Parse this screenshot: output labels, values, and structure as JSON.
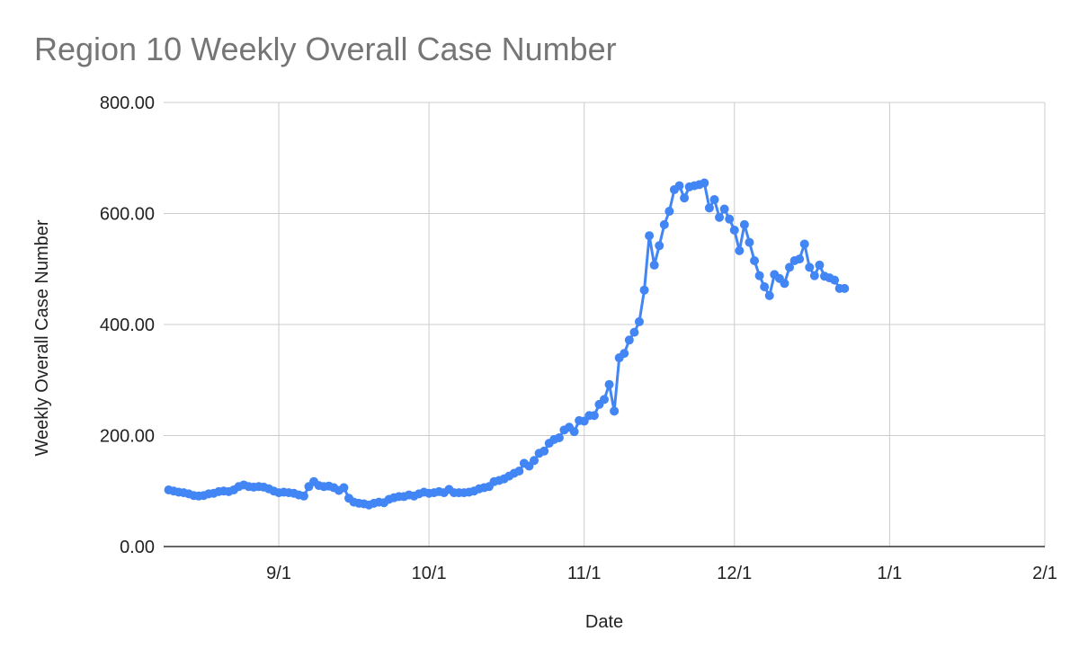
{
  "chart_data": {
    "type": "line",
    "title": "Region 10 Weekly Overall Case Number",
    "xlabel": "Date",
    "ylabel": "Weekly Overall Case Number",
    "ylim": [
      0,
      800
    ],
    "xlim": [
      "2020-08-09",
      "2021-02-01"
    ],
    "y_ticks": [
      0,
      200,
      400,
      600,
      800
    ],
    "y_tick_labels": [
      "0.00",
      "200.00",
      "400.00",
      "600.00",
      "800.00"
    ],
    "x_ticks": [
      "2020-09-01",
      "2020-10-01",
      "2020-11-01",
      "2020-12-01",
      "2021-01-01",
      "2021-02-01"
    ],
    "x_tick_labels": [
      "9/1",
      "10/1",
      "11/1",
      "12/1",
      "1/1",
      "2/1"
    ],
    "grid": true,
    "legend": "none",
    "colors": {
      "series": "#4285f4",
      "grid": "#cccccc",
      "axis": "#333333",
      "title": "#757575"
    },
    "series": [
      {
        "points": [
          [
            "2020-08-10",
            102
          ],
          [
            "2020-08-11",
            100
          ],
          [
            "2020-08-12",
            98
          ],
          [
            "2020-08-13",
            97
          ],
          [
            "2020-08-14",
            95
          ],
          [
            "2020-08-15",
            92
          ],
          [
            "2020-08-16",
            91
          ],
          [
            "2020-08-17",
            92
          ],
          [
            "2020-08-18",
            95
          ],
          [
            "2020-08-19",
            96
          ],
          [
            "2020-08-20",
            99
          ],
          [
            "2020-08-21",
            100
          ],
          [
            "2020-08-22",
            99
          ],
          [
            "2020-08-23",
            102
          ],
          [
            "2020-08-24",
            108
          ],
          [
            "2020-08-25",
            111
          ],
          [
            "2020-08-26",
            108
          ],
          [
            "2020-08-27",
            107
          ],
          [
            "2020-08-28",
            108
          ],
          [
            "2020-08-29",
            107
          ],
          [
            "2020-08-30",
            104
          ],
          [
            "2020-08-31",
            100
          ],
          [
            "2020-09-01",
            97
          ],
          [
            "2020-09-02",
            98
          ],
          [
            "2020-09-03",
            97
          ],
          [
            "2020-09-04",
            96
          ],
          [
            "2020-09-05",
            93
          ],
          [
            "2020-09-06",
            91
          ],
          [
            "2020-09-07",
            108
          ],
          [
            "2020-09-08",
            117
          ],
          [
            "2020-09-09",
            110
          ],
          [
            "2020-09-10",
            108
          ],
          [
            "2020-09-11",
            109
          ],
          [
            "2020-09-12",
            106
          ],
          [
            "2020-09-13",
            101
          ],
          [
            "2020-09-14",
            106
          ],
          [
            "2020-09-15",
            87
          ],
          [
            "2020-09-16",
            80
          ],
          [
            "2020-09-17",
            78
          ],
          [
            "2020-09-18",
            77
          ],
          [
            "2020-09-19",
            75
          ],
          [
            "2020-09-20",
            78
          ],
          [
            "2020-09-21",
            80
          ],
          [
            "2020-09-22",
            79
          ],
          [
            "2020-09-23",
            85
          ],
          [
            "2020-09-24",
            88
          ],
          [
            "2020-09-25",
            90
          ],
          [
            "2020-09-26",
            90
          ],
          [
            "2020-09-27",
            93
          ],
          [
            "2020-09-28",
            91
          ],
          [
            "2020-09-29",
            95
          ],
          [
            "2020-09-30",
            98
          ],
          [
            "2020-10-01",
            96
          ],
          [
            "2020-10-02",
            97
          ],
          [
            "2020-10-03",
            99
          ],
          [
            "2020-10-04",
            97
          ],
          [
            "2020-10-05",
            103
          ],
          [
            "2020-10-06",
            97
          ],
          [
            "2020-10-07",
            97
          ],
          [
            "2020-10-08",
            97
          ],
          [
            "2020-10-09",
            98
          ],
          [
            "2020-10-10",
            100
          ],
          [
            "2020-10-11",
            104
          ],
          [
            "2020-10-12",
            106
          ],
          [
            "2020-10-13",
            108
          ],
          [
            "2020-10-14",
            117
          ],
          [
            "2020-10-15",
            119
          ],
          [
            "2020-10-16",
            122
          ],
          [
            "2020-10-17",
            127
          ],
          [
            "2020-10-18",
            132
          ],
          [
            "2020-10-19",
            136
          ],
          [
            "2020-10-20",
            150
          ],
          [
            "2020-10-21",
            145
          ],
          [
            "2020-10-22",
            155
          ],
          [
            "2020-10-23",
            168
          ],
          [
            "2020-10-24",
            172
          ],
          [
            "2020-10-25",
            186
          ],
          [
            "2020-10-26",
            193
          ],
          [
            "2020-10-27",
            196
          ],
          [
            "2020-10-28",
            210
          ],
          [
            "2020-10-29",
            215
          ],
          [
            "2020-10-30",
            207
          ],
          [
            "2020-10-31",
            227
          ],
          [
            "2020-11-01",
            226
          ],
          [
            "2020-11-02",
            236
          ],
          [
            "2020-11-03",
            236
          ],
          [
            "2020-11-04",
            256
          ],
          [
            "2020-11-05",
            265
          ],
          [
            "2020-11-06",
            292
          ],
          [
            "2020-11-07",
            244
          ],
          [
            "2020-11-08",
            340
          ],
          [
            "2020-11-09",
            348
          ],
          [
            "2020-11-10",
            372
          ],
          [
            "2020-11-11",
            386
          ],
          [
            "2020-11-12",
            405
          ],
          [
            "2020-11-13",
            462
          ],
          [
            "2020-11-14",
            560
          ],
          [
            "2020-11-15",
            507
          ],
          [
            "2020-11-16",
            542
          ],
          [
            "2020-11-17",
            580
          ],
          [
            "2020-11-18",
            604
          ],
          [
            "2020-11-19",
            643
          ],
          [
            "2020-11-20",
            650
          ],
          [
            "2020-11-21",
            628
          ],
          [
            "2020-11-22",
            648
          ],
          [
            "2020-11-23",
            650
          ],
          [
            "2020-11-24",
            652
          ],
          [
            "2020-11-25",
            655
          ],
          [
            "2020-11-26",
            610
          ],
          [
            "2020-11-27",
            625
          ],
          [
            "2020-11-28",
            593
          ],
          [
            "2020-11-29",
            608
          ],
          [
            "2020-11-30",
            590
          ],
          [
            "2020-12-01",
            570
          ],
          [
            "2020-12-02",
            533
          ],
          [
            "2020-12-03",
            580
          ],
          [
            "2020-12-04",
            548
          ],
          [
            "2020-12-05",
            515
          ],
          [
            "2020-12-06",
            488
          ],
          [
            "2020-12-07",
            468
          ],
          [
            "2020-12-08",
            452
          ],
          [
            "2020-12-09",
            490
          ],
          [
            "2020-12-10",
            483
          ],
          [
            "2020-12-11",
            474
          ],
          [
            "2020-12-12",
            503
          ],
          [
            "2020-12-13",
            515
          ],
          [
            "2020-12-14",
            518
          ],
          [
            "2020-12-15",
            545
          ],
          [
            "2020-12-16",
            503
          ],
          [
            "2020-12-17",
            488
          ],
          [
            "2020-12-18",
            507
          ],
          [
            "2020-12-19",
            487
          ],
          [
            "2020-12-20",
            484
          ],
          [
            "2020-12-21",
            480
          ],
          [
            "2020-12-22",
            465
          ],
          [
            "2020-12-23",
            465
          ]
        ]
      }
    ]
  }
}
